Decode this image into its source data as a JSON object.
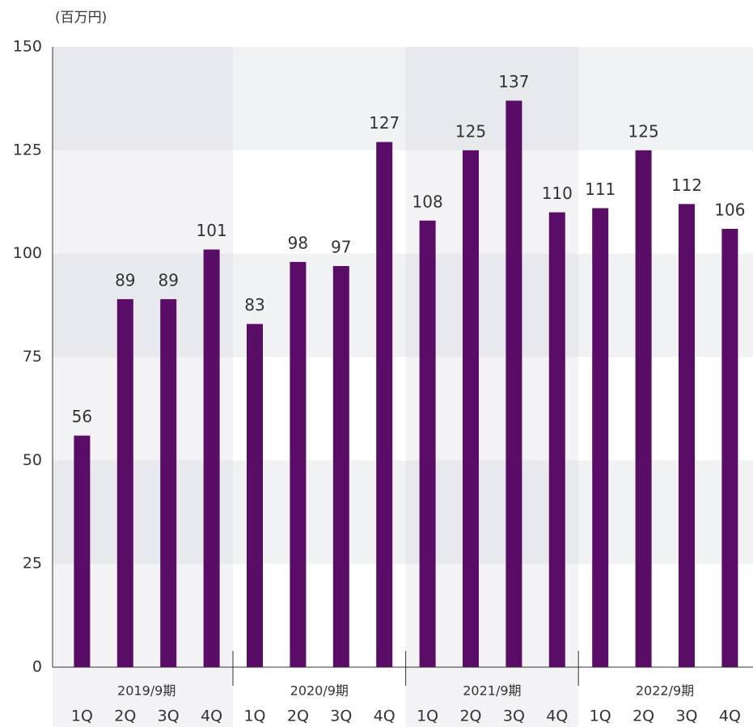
{
  "chart_data": {
    "type": "bar",
    "unit_label": "(百万円)",
    "categories": [
      "1Q",
      "2Q",
      "3Q",
      "4Q",
      "1Q",
      "2Q",
      "3Q",
      "4Q",
      "1Q",
      "2Q",
      "3Q",
      "4Q",
      "1Q",
      "2Q",
      "3Q",
      "4Q"
    ],
    "groups": [
      "2019/9期",
      "2020/9期",
      "2021/9期",
      "2022/9期"
    ],
    "values": [
      56,
      89,
      89,
      101,
      83,
      98,
      97,
      127,
      108,
      125,
      137,
      110,
      111,
      125,
      112,
      106
    ],
    "color": "#5a0d66",
    "ylim": [
      0,
      150
    ],
    "yticks": [
      0,
      25,
      50,
      75,
      100,
      125,
      150
    ],
    "grid": true
  }
}
